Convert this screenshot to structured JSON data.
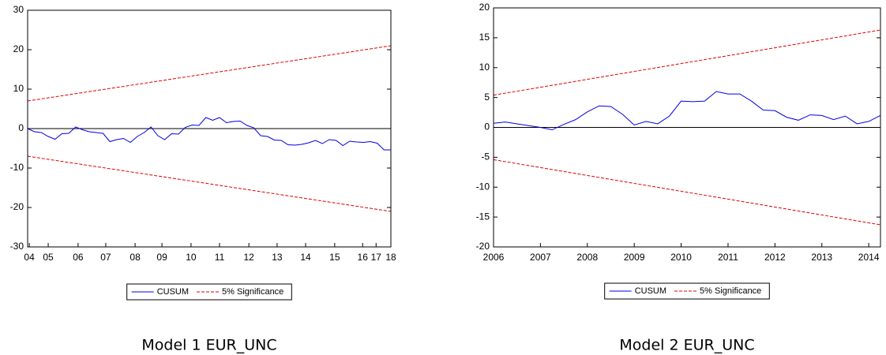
{
  "chart_data": [
    {
      "type": "line",
      "caption": "Model 1 EUR_UNC",
      "xlim": [
        2004.5,
        2017.75
      ],
      "ylim": [
        -30,
        30
      ],
      "yticks": [
        -30,
        -20,
        -10,
        0,
        10,
        20,
        30
      ],
      "xticks": [
        {
          "value": 2004.56,
          "label": "04"
        },
        {
          "value": 2005.25,
          "label": "05"
        },
        {
          "value": 2006.34,
          "label": "06"
        },
        {
          "value": 2007.35,
          "label": "07"
        },
        {
          "value": 2008.42,
          "label": "08"
        },
        {
          "value": 2009.4,
          "label": "09"
        },
        {
          "value": 2010.46,
          "label": "10"
        },
        {
          "value": 2011.5,
          "label": "11"
        },
        {
          "value": 2012.57,
          "label": "12"
        },
        {
          "value": 2013.6,
          "label": "13"
        },
        {
          "value": 2014.64,
          "label": "14"
        },
        {
          "value": 2015.7,
          "label": "15"
        },
        {
          "value": 2016.72,
          "label": "16"
        },
        {
          "value": 2017.21,
          "label": "17"
        },
        {
          "value": 2017.75,
          "label": "18"
        }
      ],
      "series": [
        {
          "name": "CUSUM",
          "color": "#0000e0",
          "style": "solid",
          "x": [
            2004.5,
            2004.75,
            2005,
            2005.25,
            2005.5,
            2005.75,
            2006,
            2006.25,
            2006.5,
            2006.75,
            2007,
            2007.25,
            2007.5,
            2007.75,
            2008,
            2008.25,
            2008.5,
            2008.75,
            2009,
            2009.25,
            2009.5,
            2009.75,
            2010,
            2010.25,
            2010.5,
            2010.75,
            2011,
            2011.25,
            2011.5,
            2011.75,
            2012,
            2012.25,
            2012.5,
            2012.75,
            2013,
            2013.25,
            2013.5,
            2013.75,
            2014,
            2014.25,
            2014.5,
            2014.75,
            2015,
            2015.25,
            2015.5,
            2015.75,
            2016,
            2016.25,
            2016.5,
            2016.75,
            2017,
            2017.25,
            2017.5,
            2017.75
          ],
          "values": [
            0,
            -0.8,
            -1,
            -2,
            -2.7,
            -1.3,
            -1.2,
            0.4,
            -0.3,
            -0.8,
            -1,
            -1.2,
            -3.3,
            -2.8,
            -2.5,
            -3.5,
            -2,
            -1,
            0.4,
            -1.8,
            -2.8,
            -1.3,
            -1.4,
            0.3,
            0.9,
            0.8,
            2.8,
            2.1,
            2.8,
            1.5,
            1.8,
            1.9,
            0.8,
            0.2,
            -1.8,
            -2,
            -2.9,
            -3,
            -4.1,
            -4.2,
            -4,
            -3.6,
            -3,
            -3.8,
            -2.8,
            -3,
            -4.3,
            -3.2,
            -3.4,
            -3.5,
            -3.3,
            -3.7,
            -5.4,
            -5.4
          ]
        },
        {
          "name": "5% Significance",
          "color": "#e00000",
          "style": "dashed",
          "x": [
            2004.5,
            2017.75
          ],
          "values": [
            7,
            21
          ],
          "lower": [
            -7,
            -21
          ]
        }
      ]
    },
    {
      "type": "line",
      "caption": "Model 2 EUR_UNC",
      "xlim": [
        2006,
        2014.25
      ],
      "ylim": [
        -20,
        20
      ],
      "yticks": [
        -20,
        -15,
        -10,
        -5,
        0,
        5,
        10,
        15,
        20
      ],
      "xticks": [
        2006,
        2007,
        2008,
        2009,
        2010,
        2011,
        2012,
        2013,
        2014
      ],
      "series": [
        {
          "name": "CUSUM",
          "color": "#0000e0",
          "style": "solid",
          "x": [
            2006,
            2006.25,
            2006.5,
            2006.75,
            2007,
            2007.25,
            2007.5,
            2007.75,
            2008,
            2008.25,
            2008.5,
            2008.75,
            2009,
            2009.25,
            2009.5,
            2009.75,
            2010,
            2010.25,
            2010.5,
            2010.75,
            2011,
            2011.25,
            2011.5,
            2011.75,
            2012,
            2012.25,
            2012.5,
            2012.75,
            2013,
            2013.25,
            2013.5,
            2013.75,
            2014,
            2014.25
          ],
          "values": [
            0.7,
            0.9,
            0.6,
            0.3,
            0,
            -0.4,
            0.5,
            1.3,
            2.6,
            3.6,
            3.5,
            2.2,
            0.4,
            1,
            0.6,
            1.9,
            4.4,
            4.3,
            4.4,
            6,
            5.6,
            5.6,
            4.4,
            2.9,
            2.8,
            1.7,
            1.2,
            2.1,
            2,
            1.3,
            1.9,
            0.6,
            1,
            2
          ]
        },
        {
          "name": "5% Significance",
          "color": "#e00000",
          "style": "dashed",
          "x": [
            2006,
            2014.25
          ],
          "values": [
            5.4,
            16.3
          ],
          "lower": [
            -5.4,
            -16.3
          ]
        }
      ]
    }
  ]
}
